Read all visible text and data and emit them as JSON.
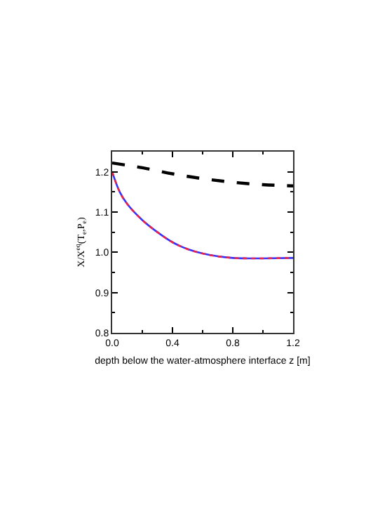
{
  "chart_data": {
    "type": "line",
    "xlabel": "depth below the water-atmosphere interface z [m]",
    "ylabel": "X/X$^{eq}$(T$_{e}$,P$_{e}$)",
    "xlim": [
      0,
      1.2
    ],
    "xticks": [
      {
        "value": 0,
        "label": "0.0"
      },
      0.4,
      0.8,
      1.2
    ],
    "ylim": [
      0.8,
      1.25
    ],
    "yticks": [
      0.8,
      0.9,
      {
        "value": 1,
        "label": "1.0"
      },
      1.1,
      1.2
    ],
    "legend": false,
    "marker": "none",
    "series": [
      {
        "color": "#000000",
        "line_style": "dashed",
        "x": [
          0,
          0.2,
          0.4,
          0.6,
          0.8,
          1.0,
          1.2
        ],
        "values": [
          1.222,
          1.21,
          1.195,
          1.183,
          1.174,
          1.168,
          1.165
        ]
      },
      {
        "color": "#3333ff",
        "line_style": "solid",
        "x": [
          0,
          0.05,
          0.1,
          0.2,
          0.3,
          0.4,
          0.5,
          0.6,
          0.7,
          0.8,
          0.9,
          1.0,
          1.2
        ],
        "values": [
          1.2,
          1.15,
          1.12,
          1.08,
          1.05,
          1.025,
          1.008,
          0.997,
          0.99,
          0.986,
          0.985,
          0.985,
          0.986
        ]
      },
      {
        "color": "#ee2244",
        "line_style": "dotted",
        "x": [
          0,
          0.05,
          0.1,
          0.2,
          0.3,
          0.4,
          0.5,
          0.6,
          0.7,
          0.8,
          0.9,
          1.0,
          1.2
        ],
        "values": [
          1.2,
          1.15,
          1.12,
          1.08,
          1.05,
          1.025,
          1.008,
          0.997,
          0.99,
          0.986,
          0.985,
          0.985,
          0.986
        ]
      }
    ]
  }
}
